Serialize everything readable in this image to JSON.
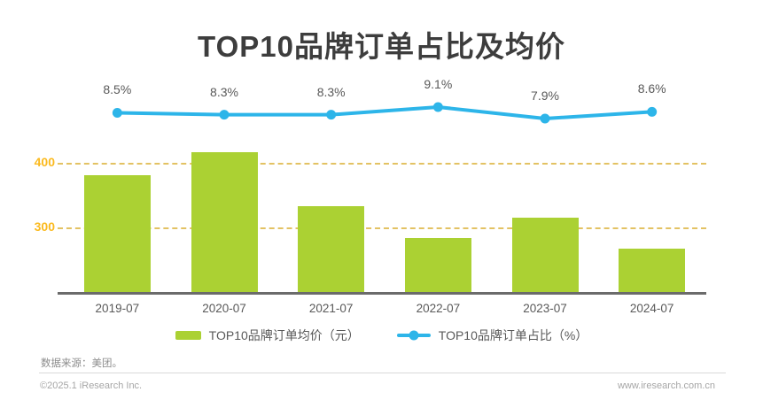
{
  "title": "TOP10品牌订单占比及均价",
  "chart_data": {
    "type": "bar",
    "subtype": "bar-line-combo",
    "categories": [
      "2019-07",
      "2020-07",
      "2021-07",
      "2022-07",
      "2023-07",
      "2024-07"
    ],
    "series": [
      {
        "name": "TOP10品牌订单均价（元）",
        "type": "bar",
        "values": [
          380,
          415,
          332,
          283,
          315,
          268
        ],
        "color": "#abd133"
      },
      {
        "name": "TOP10品牌订单占比（%）",
        "type": "line",
        "values": [
          8.5,
          8.3,
          8.3,
          9.1,
          7.9,
          8.6
        ],
        "point_labels": [
          "8.5%",
          "8.3%",
          "8.3%",
          "9.1%",
          "7.9%",
          "8.6%"
        ],
        "color": "#2db5e9"
      }
    ],
    "title": "TOP10品牌订单占比及均价",
    "xlabel": "",
    "ylabel": "",
    "yticks": [
      400,
      300
    ],
    "ytick_color": "#fbba1f",
    "gridline_style": "dashed",
    "gridline_color": "#e3c263",
    "legend_position": "bottom"
  },
  "legend": {
    "bar_label": "TOP10品牌订单均价（元）",
    "line_label": "TOP10品牌订单占比（%）"
  },
  "footer": {
    "source": "数据来源：美团。",
    "copyright": "©2025.1 iResearch Inc.",
    "website": "www.iresearch.com.cn"
  }
}
